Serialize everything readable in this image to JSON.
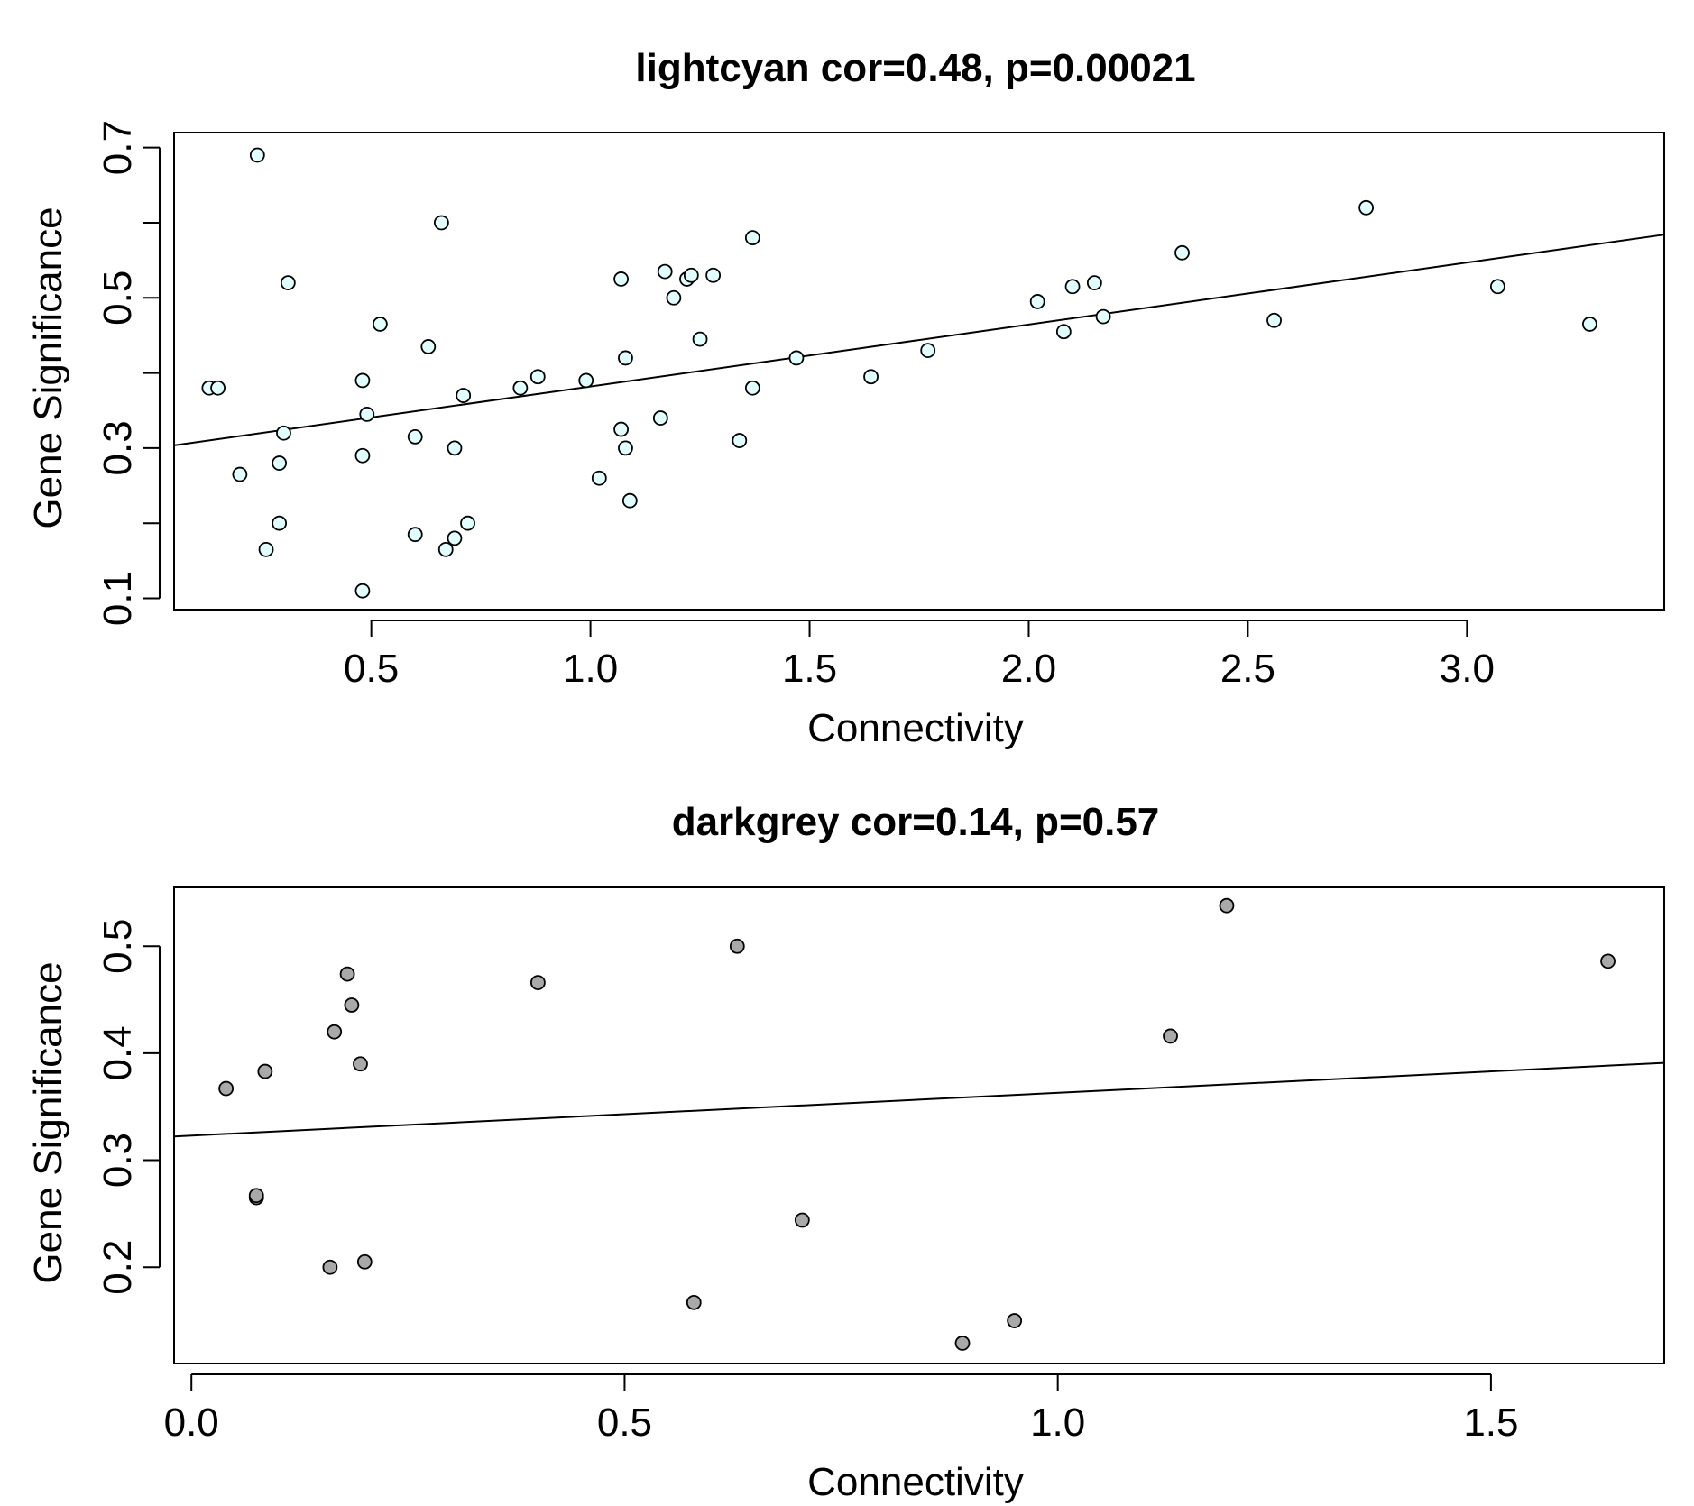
{
  "chart_data": [
    {
      "type": "scatter",
      "title": "lightcyan cor=0.48, p=0.00021",
      "xlabel": "Connectivity",
      "ylabel": "Gene Significance",
      "xlim": [
        0.05,
        3.45
      ],
      "ylim": [
        0.085,
        0.72
      ],
      "xticks": [
        0.5,
        1.0,
        1.5,
        2.0,
        2.5,
        3.0
      ],
      "xtick_labels": [
        "0.5",
        "1.0",
        "1.5",
        "2.0",
        "2.5",
        "3.0"
      ],
      "yticks": [
        0.1,
        0.2,
        0.3,
        0.4,
        0.5,
        0.6,
        0.7
      ],
      "ytick_labels": [
        "0.1",
        "",
        "0.3",
        "",
        "0.5",
        "",
        "0.7"
      ],
      "point_fill": "#e0ffff",
      "fit_line": {
        "intercept": 0.2995,
        "slope": 0.0825
      },
      "points": [
        [
          0.13,
          0.38
        ],
        [
          0.15,
          0.38
        ],
        [
          0.2,
          0.265
        ],
        [
          0.24,
          0.69
        ],
        [
          0.26,
          0.165
        ],
        [
          0.29,
          0.28
        ],
        [
          0.29,
          0.2
        ],
        [
          0.3,
          0.32
        ],
        [
          0.31,
          0.52
        ],
        [
          0.48,
          0.29
        ],
        [
          0.48,
          0.39
        ],
        [
          0.48,
          0.11
        ],
        [
          0.49,
          0.345
        ],
        [
          0.52,
          0.465
        ],
        [
          0.6,
          0.315
        ],
        [
          0.6,
          0.185
        ],
        [
          0.63,
          0.435
        ],
        [
          0.66,
          0.6
        ],
        [
          0.67,
          0.165
        ],
        [
          0.69,
          0.3
        ],
        [
          0.69,
          0.18
        ],
        [
          0.71,
          0.37
        ],
        [
          0.72,
          0.2
        ],
        [
          0.84,
          0.38
        ],
        [
          0.88,
          0.395
        ],
        [
          0.99,
          0.39
        ],
        [
          1.02,
          0.26
        ],
        [
          1.07,
          0.525
        ],
        [
          1.07,
          0.325
        ],
        [
          1.08,
          0.3
        ],
        [
          1.08,
          0.42
        ],
        [
          1.09,
          0.23
        ],
        [
          1.16,
          0.34
        ],
        [
          1.17,
          0.535
        ],
        [
          1.19,
          0.5
        ],
        [
          1.22,
          0.525
        ],
        [
          1.23,
          0.53
        ],
        [
          1.25,
          0.445
        ],
        [
          1.28,
          0.53
        ],
        [
          1.34,
          0.31
        ],
        [
          1.37,
          0.58
        ],
        [
          1.37,
          0.38
        ],
        [
          1.47,
          0.42
        ],
        [
          1.64,
          0.395
        ],
        [
          1.77,
          0.43
        ],
        [
          2.02,
          0.495
        ],
        [
          2.08,
          0.455
        ],
        [
          2.1,
          0.515
        ],
        [
          2.15,
          0.52
        ],
        [
          2.17,
          0.475
        ],
        [
          2.35,
          0.56
        ],
        [
          2.56,
          0.47
        ],
        [
          2.77,
          0.62
        ],
        [
          3.07,
          0.515
        ],
        [
          3.28,
          0.465
        ]
      ]
    },
    {
      "type": "scatter",
      "title": "darkgrey cor=0.14, p=0.57",
      "xlabel": "Connectivity",
      "ylabel": "Gene Significance",
      "xlim": [
        -0.02,
        1.7
      ],
      "ylim": [
        0.11,
        0.555
      ],
      "xticks": [
        0.0,
        0.5,
        1.0,
        1.5
      ],
      "xtick_labels": [
        "0.0",
        "0.5",
        "1.0",
        "1.5"
      ],
      "yticks": [
        0.2,
        0.3,
        0.4,
        0.5
      ],
      "ytick_labels": [
        "0.2",
        "0.3",
        "0.4",
        "0.5"
      ],
      "point_fill": "#a9a9a9",
      "fit_line": {
        "intercept": 0.323,
        "slope": 0.04
      },
      "points": [
        [
          0.04,
          0.367
        ],
        [
          0.075,
          0.265
        ],
        [
          0.075,
          0.267
        ],
        [
          0.085,
          0.383
        ],
        [
          0.16,
          0.2
        ],
        [
          0.165,
          0.42
        ],
        [
          0.18,
          0.474
        ],
        [
          0.185,
          0.445
        ],
        [
          0.195,
          0.39
        ],
        [
          0.2,
          0.205
        ],
        [
          0.4,
          0.466
        ],
        [
          0.58,
          0.167
        ],
        [
          0.63,
          0.5
        ],
        [
          0.705,
          0.244
        ],
        [
          0.89,
          0.129
        ],
        [
          0.95,
          0.15
        ],
        [
          1.13,
          0.416
        ],
        [
          1.195,
          0.538
        ],
        [
          1.635,
          0.486
        ]
      ]
    }
  ]
}
